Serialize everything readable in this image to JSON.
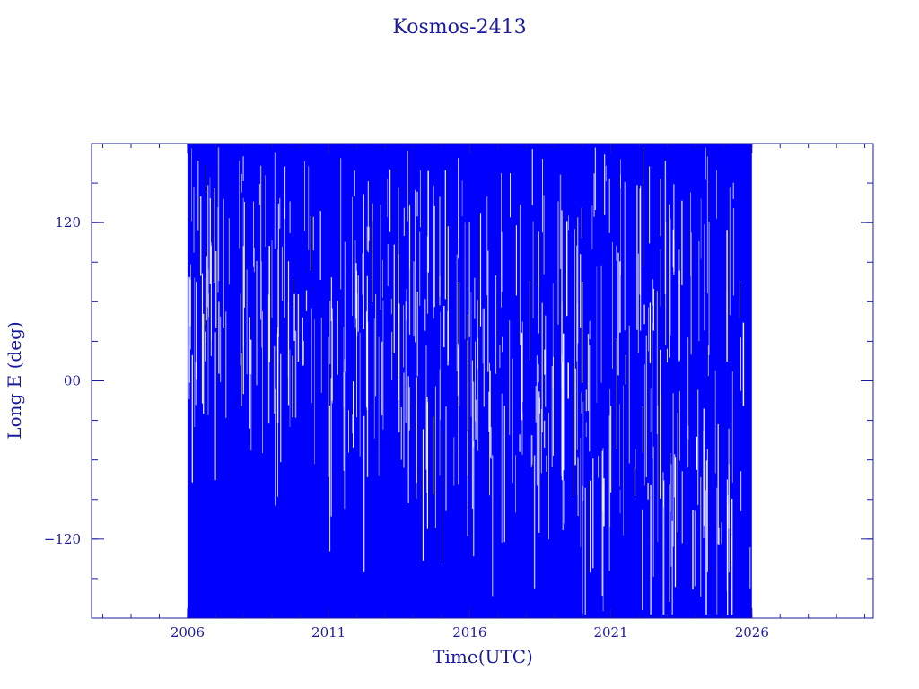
{
  "chart_data": {
    "type": "line",
    "title": "Kosmos-2413",
    "xlabel": "Time(UTC)",
    "ylabel": "Long E (deg)",
    "xlim": [
      2002.6,
      2030.3
    ],
    "ylim": [
      -180,
      180
    ],
    "x_ticks": [
      {
        "value": 2006,
        "label": "2006"
      },
      {
        "value": 2011,
        "label": "2011"
      },
      {
        "value": 2016,
        "label": "2016"
      },
      {
        "value": 2021,
        "label": "2021"
      },
      {
        "value": 2026,
        "label": "2026"
      }
    ],
    "y_ticks": [
      {
        "value": 120,
        "label": "120"
      },
      {
        "value": 0,
        "label": "00"
      },
      {
        "value": -120,
        "label": "−120"
      }
    ],
    "series": [
      {
        "color": "#0000ff",
        "x_range": [
          2006.0,
          2026.0
        ],
        "y_range": [
          -180,
          180
        ],
        "description_of_shape": "dense longitude drift; values wrap continuously between -180 and 180 deg"
      }
    ],
    "grid": false,
    "legend": "none"
  },
  "colors": {
    "axis": "#1a1a9c",
    "data": "#0000ff",
    "text": "#1a1a9c"
  }
}
